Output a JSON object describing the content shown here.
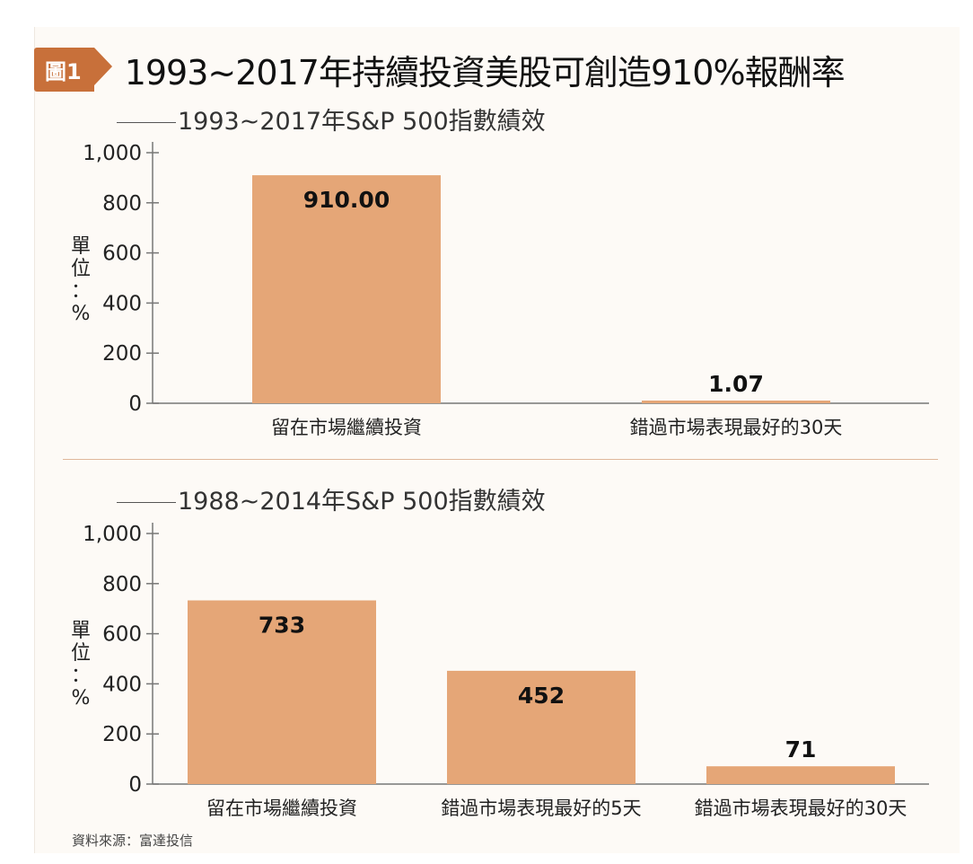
{
  "figure": {
    "badge": "圖1",
    "title": "1993~2017年持續投資美股可創造910%報酬率",
    "source": "資料來源：富達投信",
    "bar_color": "#e5a677"
  },
  "chart_data": [
    {
      "type": "bar",
      "title": "1993~2017年S&P 500指數績效",
      "ylabel": "單位：%",
      "ylim": [
        0,
        1000
      ],
      "yticks": [
        "0",
        "200",
        "400",
        "600",
        "800",
        "1,000"
      ],
      "categories": [
        "留在市場繼續投資",
        "錯過市場表現最好的30天"
      ],
      "values": [
        910.0,
        1.07
      ],
      "value_labels": [
        "910.00",
        "1.07"
      ]
    },
    {
      "type": "bar",
      "title": "1988~2014年S&P 500指數績效",
      "ylabel": "單位：%",
      "ylim": [
        0,
        1000
      ],
      "yticks": [
        "0",
        "200",
        "400",
        "600",
        "800",
        "1,000"
      ],
      "categories": [
        "留在市場繼續投資",
        "錯過市場表現最好的5天",
        "錯過市場表現最好的30天"
      ],
      "values": [
        733,
        452,
        71
      ],
      "value_labels": [
        "733",
        "452",
        "71"
      ]
    }
  ]
}
